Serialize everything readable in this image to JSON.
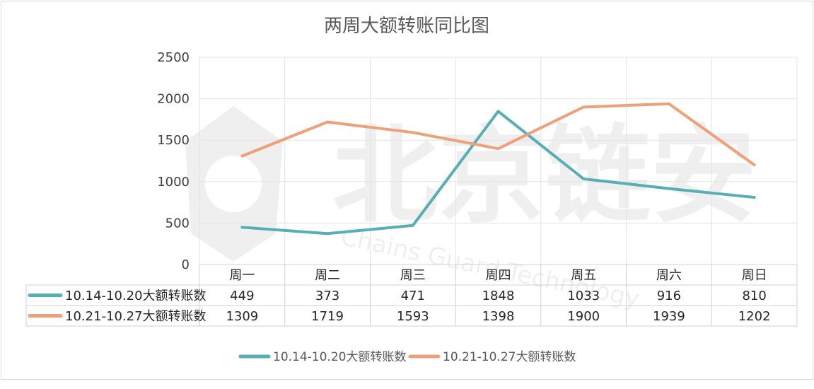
{
  "chart_data": {
    "type": "line",
    "title": "两周大额转账同比图",
    "categories": [
      "周一",
      "周二",
      "周三",
      "周四",
      "周五",
      "周六",
      "周日"
    ],
    "ylim": [
      0,
      2500
    ],
    "yticks": [
      0,
      500,
      1000,
      1500,
      2000,
      2500
    ],
    "grid": true,
    "legend_position": "bottom",
    "data_table": true,
    "series": [
      {
        "name": "10.14-10.20大额转账数",
        "color": "#58aeb5",
        "values": [
          449,
          373,
          471,
          1848,
          1033,
          916,
          810
        ]
      },
      {
        "name": "10.21-10.27大额转账数",
        "color": "#eea07b",
        "values": [
          1309,
          1719,
          1593,
          1398,
          1900,
          1939,
          1202
        ]
      }
    ]
  },
  "watermark": {
    "text_cn": "北京链安",
    "text_en": "Chains Guard Technology"
  }
}
